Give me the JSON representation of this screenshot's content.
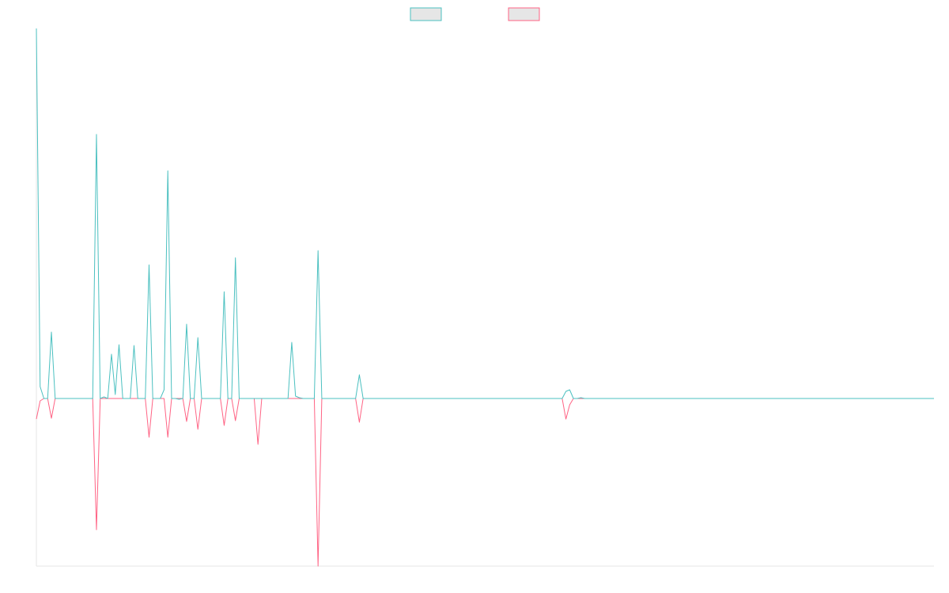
{
  "chart_data": {
    "type": "line",
    "categories": [
      null,
      null,
      null,
      null,
      null,
      null,
      null,
      null,
      null,
      null,
      null,
      null,
      null,
      null,
      null,
      null,
      null,
      null,
      null,
      null,
      null,
      null,
      null,
      null,
      null,
      null,
      null,
      null,
      null,
      null,
      null,
      null,
      null,
      null,
      null,
      null,
      null,
      null,
      null,
      null,
      null,
      null,
      null,
      null,
      null,
      null,
      null,
      null,
      null,
      null,
      null,
      null,
      null,
      null,
      null,
      null,
      null,
      null,
      null,
      null,
      null,
      null,
      null,
      null,
      null,
      null,
      null,
      null,
      null,
      null,
      null,
      null,
      null,
      null,
      null,
      null,
      null,
      null,
      null,
      null,
      null,
      null,
      null,
      null,
      null,
      null,
      null,
      null,
      null,
      null,
      null,
      null,
      null,
      null,
      null,
      null,
      null,
      null,
      null,
      null,
      null,
      null,
      null,
      null,
      null,
      null,
      null,
      null,
      null,
      null,
      null,
      null,
      null,
      null,
      null,
      null,
      null,
      null,
      null,
      null,
      null,
      null,
      null,
      null,
      null,
      null,
      null,
      null,
      null,
      null,
      null,
      null,
      null,
      null,
      null,
      null,
      null,
      null,
      null,
      null,
      null,
      null,
      null,
      null,
      null,
      null,
      null,
      null,
      null,
      null,
      null,
      null,
      null,
      null,
      null,
      null,
      null,
      null,
      null,
      null,
      null,
      null,
      null,
      null,
      null,
      null,
      null,
      null,
      null,
      null,
      null,
      null,
      null,
      null,
      null,
      null,
      null,
      null,
      null,
      null,
      null,
      null,
      null,
      null,
      null,
      null,
      null,
      null,
      null,
      null,
      null,
      null,
      null,
      null,
      null,
      null,
      null,
      null,
      null,
      null,
      null,
      null,
      null,
      null,
      null,
      null,
      null,
      null,
      null,
      null,
      null,
      null,
      null,
      null,
      null,
      null,
      null,
      null,
      null,
      null,
      null,
      null,
      null,
      null,
      null,
      null,
      null,
      null,
      null,
      null,
      null,
      null,
      null,
      null,
      null,
      null,
      null,
      null,
      null,
      null
    ],
    "series": [
      {
        "color": "#4bc0c0",
        "values": [
          468,
          15,
          0,
          0,
          84,
          0,
          0,
          0,
          0,
          0,
          0,
          0,
          0,
          0,
          0,
          0,
          334,
          0,
          2,
          0,
          56,
          5,
          68,
          0,
          0,
          0,
          67,
          0,
          0,
          0,
          169,
          0,
          0,
          0,
          11,
          288,
          0,
          0,
          -1,
          0,
          94,
          0,
          0,
          77,
          0,
          0,
          0,
          0,
          0,
          0,
          135,
          0,
          0,
          178,
          0,
          0,
          0,
          0,
          0,
          0,
          0,
          0,
          0,
          0,
          0,
          0,
          0,
          0,
          71,
          3,
          1,
          0,
          0,
          0,
          0,
          187,
          0,
          0,
          0,
          0,
          0,
          0,
          0,
          0,
          0,
          0,
          30,
          0,
          0,
          0,
          0,
          0,
          0,
          0,
          0,
          0,
          0,
          0,
          0,
          0,
          0,
          0,
          0,
          0,
          0,
          0,
          0,
          0,
          0,
          0,
          0,
          0,
          0,
          0,
          0,
          0,
          0,
          0,
          0,
          0,
          0,
          0,
          0,
          0,
          0,
          0,
          0,
          0,
          0,
          0,
          0,
          0,
          0,
          0,
          0,
          0,
          0,
          0,
          0,
          0,
          0,
          9,
          11,
          0,
          0,
          1,
          0,
          0,
          0,
          0,
          0,
          0,
          0,
          0,
          0,
          0,
          0,
          0,
          0,
          0,
          0,
          0,
          0,
          0,
          0,
          0,
          0,
          0,
          0,
          0,
          0,
          0,
          0,
          0,
          0,
          0,
          0,
          0,
          0,
          0,
          0,
          0,
          0,
          0,
          0,
          0,
          0,
          0,
          0,
          0,
          0,
          0,
          0,
          0,
          0,
          0,
          0,
          0,
          0,
          0,
          0,
          0,
          0,
          0,
          0,
          0,
          0,
          0,
          0,
          0,
          0,
          0,
          0,
          0,
          0,
          0,
          0,
          0,
          0,
          0,
          0,
          0,
          0,
          0,
          0,
          0,
          0,
          0,
          0,
          0,
          0,
          0,
          0,
          0,
          0,
          0,
          0,
          0,
          0,
          0
        ]
      },
      {
        "color": "#ff6384",
        "values": [
          -26,
          -3,
          0,
          0,
          -25,
          0,
          0,
          0,
          0,
          0,
          0,
          0,
          0,
          0,
          0,
          0,
          -166,
          0,
          0,
          0,
          0,
          0,
          0,
          0,
          0,
          0,
          0,
          0,
          0,
          0,
          -49,
          0,
          0,
          0,
          0,
          -49,
          0,
          0,
          0,
          0,
          -29,
          0,
          0,
          -39,
          0,
          0,
          0,
          0,
          0,
          0,
          -34,
          0,
          0,
          -28,
          0,
          0,
          0,
          0,
          0,
          -58,
          0,
          0,
          0,
          0,
          0,
          0,
          0,
          0,
          0,
          0,
          0,
          0,
          0,
          0,
          0,
          -212,
          0,
          0,
          0,
          0,
          0,
          0,
          0,
          0,
          0,
          0,
          -30,
          0,
          0,
          0,
          0,
          0,
          0,
          0,
          0,
          0,
          0,
          0,
          0,
          0,
          0,
          0,
          0,
          0,
          0,
          0,
          0,
          0,
          0,
          0,
          0,
          0,
          0,
          0,
          0,
          0,
          0,
          0,
          0,
          0,
          0,
          0,
          0,
          0,
          0,
          0,
          0,
          0,
          0,
          0,
          0,
          0,
          0,
          0,
          0,
          0,
          0,
          0,
          0,
          0,
          0,
          -26,
          -8,
          0,
          0,
          0,
          0,
          0,
          0,
          0,
          0,
          0,
          0,
          0,
          0,
          0,
          0,
          0,
          0,
          0,
          0,
          0,
          0,
          0,
          0,
          0,
          0,
          0,
          0,
          0,
          0,
          0,
          0,
          0,
          0,
          0,
          0,
          0,
          0,
          0,
          0,
          0,
          0,
          0,
          0,
          0,
          0,
          0,
          0,
          0,
          0,
          0,
          0,
          0,
          0,
          0,
          0,
          0,
          0,
          0,
          0,
          0,
          0,
          0,
          0,
          0,
          0,
          0,
          0,
          0,
          0,
          0,
          0,
          0,
          0,
          0,
          0,
          0,
          0,
          0,
          0,
          0,
          0,
          0,
          0,
          0,
          0,
          0,
          0,
          0,
          0,
          0,
          0,
          0,
          0,
          0,
          0,
          0,
          0,
          0
        ]
      }
    ],
    "ylim": [
      -212,
      468
    ]
  }
}
